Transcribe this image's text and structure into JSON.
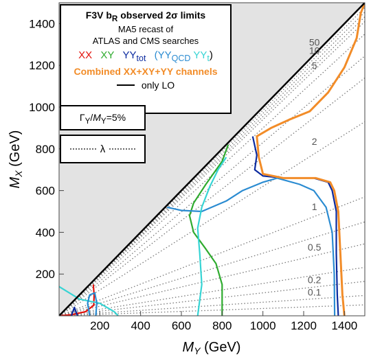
{
  "chart_data": {
    "type": "line",
    "xlabel_parts": [
      "M",
      "Y",
      " (GeV)"
    ],
    "ylabel_parts": [
      "M",
      "X",
      " (GeV)"
    ],
    "xlim": [
      0,
      1500
    ],
    "ylim": [
      0,
      1500
    ],
    "xticks": [
      "200",
      "400",
      "600",
      "800",
      "1000",
      "1200",
      "1400"
    ],
    "yticks": [
      "200",
      "400",
      "600",
      "800",
      "1000",
      "1200",
      "1400"
    ],
    "xtick_values": [
      200,
      400,
      600,
      800,
      1000,
      1200,
      1400
    ],
    "ytick_values": [
      200,
      400,
      600,
      800,
      1000,
      1200,
      1400
    ],
    "excluded_region": "M_X < M_Y (grey)",
    "diagonal": "M_X = M_Y",
    "lambda_contours": [
      {
        "label": "50",
        "slope": 0.985
      },
      {
        "label": "10",
        "slope": 0.955
      },
      {
        "label": "5",
        "slope": 0.9
      },
      {
        "label": "2",
        "slope": 0.62
      },
      {
        "label": "1",
        "slope": 0.38
      },
      {
        "label": "0.5",
        "slope": 0.23
      },
      {
        "label": "0.2",
        "slope": 0.11
      },
      {
        "label": "0.1",
        "slope": 0.065
      },
      {
        "label": "",
        "slope": 0.035
      },
      {
        "label": "",
        "slope": 0.155
      },
      {
        "label": "",
        "slope": 0.3
      },
      {
        "label": "",
        "slope": 0.76
      },
      {
        "label": "",
        "slope": 0.83
      },
      {
        "label": "",
        "slope": 0.94
      },
      {
        "label": "",
        "slope": 0.97
      }
    ],
    "series": [
      {
        "name": "XX",
        "color": "#e3120b",
        "points": [
          [
            0,
            0
          ],
          [
            60,
            5
          ],
          [
            130,
            20
          ],
          [
            170,
            50
          ],
          [
            172,
            100
          ],
          [
            168,
            150
          ]
        ]
      },
      {
        "name": "XY",
        "color": "#2eab2e",
        "points": [
          [
            830,
            820
          ],
          [
            800,
            740
          ],
          [
            720,
            630
          ],
          [
            660,
            540
          ],
          [
            640,
            480
          ],
          [
            660,
            400
          ],
          [
            720,
            320
          ],
          [
            770,
            250
          ],
          [
            800,
            150
          ],
          [
            800,
            0
          ]
        ]
      },
      {
        "name": "YY_tot",
        "color": "#0b2a9f",
        "points": [
          [
            950,
            860
          ],
          [
            970,
            770
          ],
          [
            960,
            700
          ],
          [
            1000,
            670
          ],
          [
            1100,
            660
          ],
          [
            1250,
            660
          ],
          [
            1320,
            640
          ],
          [
            1340,
            600
          ],
          [
            1360,
            500
          ],
          [
            1360,
            300
          ],
          [
            1365,
            100
          ],
          [
            1370,
            0
          ]
        ]
      },
      {
        "name": "YY_QCD",
        "color": "#2a8bd1",
        "points": [
          [
            530,
            520
          ],
          [
            600,
            505
          ],
          [
            700,
            500
          ],
          [
            820,
            550
          ],
          [
            900,
            600
          ],
          [
            1000,
            640
          ],
          [
            1070,
            660
          ],
          [
            1180,
            630
          ],
          [
            1250,
            600
          ],
          [
            1310,
            520
          ],
          [
            1340,
            400
          ],
          [
            1350,
            200
          ],
          [
            1352,
            0
          ]
        ]
      },
      {
        "name": "YY_t",
        "color": "#36d4d4",
        "points": [
          [
            820,
            760
          ],
          [
            780,
            700
          ],
          [
            740,
            620
          ],
          [
            700,
            520
          ],
          [
            680,
            420
          ],
          [
            690,
            300
          ],
          [
            700,
            150
          ],
          [
            680,
            0
          ]
        ]
      },
      {
        "name": "Combined XX+XY+YY",
        "color": "#f28c28",
        "points": [
          [
            1500,
            1500
          ],
          [
            1480,
            1450
          ],
          [
            1460,
            1330
          ],
          [
            1400,
            1190
          ],
          [
            1320,
            1070
          ],
          [
            1230,
            980
          ],
          [
            1130,
            940
          ],
          [
            1040,
            900
          ],
          [
            970,
            860
          ],
          [
            980,
            760
          ],
          [
            1000,
            680
          ],
          [
            1100,
            660
          ],
          [
            1260,
            660
          ],
          [
            1330,
            640
          ],
          [
            1350,
            600
          ],
          [
            1370,
            500
          ],
          [
            1380,
            300
          ],
          [
            1390,
            100
          ],
          [
            1400,
            0
          ]
        ]
      },
      {
        "name": "YY_t low",
        "color": "#36d4d4",
        "points": [
          [
            0,
            140
          ],
          [
            100,
            80
          ],
          [
            200,
            60
          ],
          [
            270,
            20
          ],
          [
            290,
            0
          ]
        ]
      },
      {
        "name": "YY_QCD low",
        "color": "#2a8bd1",
        "points": [
          [
            150,
            0
          ],
          [
            140,
            60
          ],
          [
            150,
            100
          ],
          [
            175,
            110
          ],
          [
            185,
            60
          ],
          [
            180,
            0
          ]
        ]
      },
      {
        "name": "YY_tot low",
        "color": "#0b2a9f",
        "points": [
          [
            60,
            0
          ],
          [
            75,
            40
          ],
          [
            90,
            0
          ]
        ]
      }
    ]
  },
  "legend": {
    "title_a": "F3V b",
    "title_sub": "R",
    "title_b": " observed 2σ limits",
    "line1": "MA5 recast of",
    "line2": "ATLAS and CMS searches",
    "xx": "XX",
    "xy": "XY",
    "yy_main": "YY",
    "yy_sub": "tot",
    "paren_open": "(",
    "yyqcd_main": "YY",
    "yyqcd_sub": "QCD",
    "yyt_main": "YY",
    "yyt_sub": "t",
    "paren_close": ")",
    "combined": "Combined XX+XY+YY channels",
    "lo": "only LO",
    "width_gamma": "Γ",
    "width_gamma_sub": "Y",
    "width_slash": "/",
    "width_m": "M",
    "width_m_sub": "Y",
    "width_eq": "=5%",
    "lambda": "λ",
    "colors": {
      "xx": "#e3120b",
      "xy": "#2eab2e",
      "yy_tot": "#0b2a9f",
      "yy_qcd": "#2a8bd1",
      "yy_t": "#36d4d4",
      "combined": "#f28c28"
    }
  }
}
